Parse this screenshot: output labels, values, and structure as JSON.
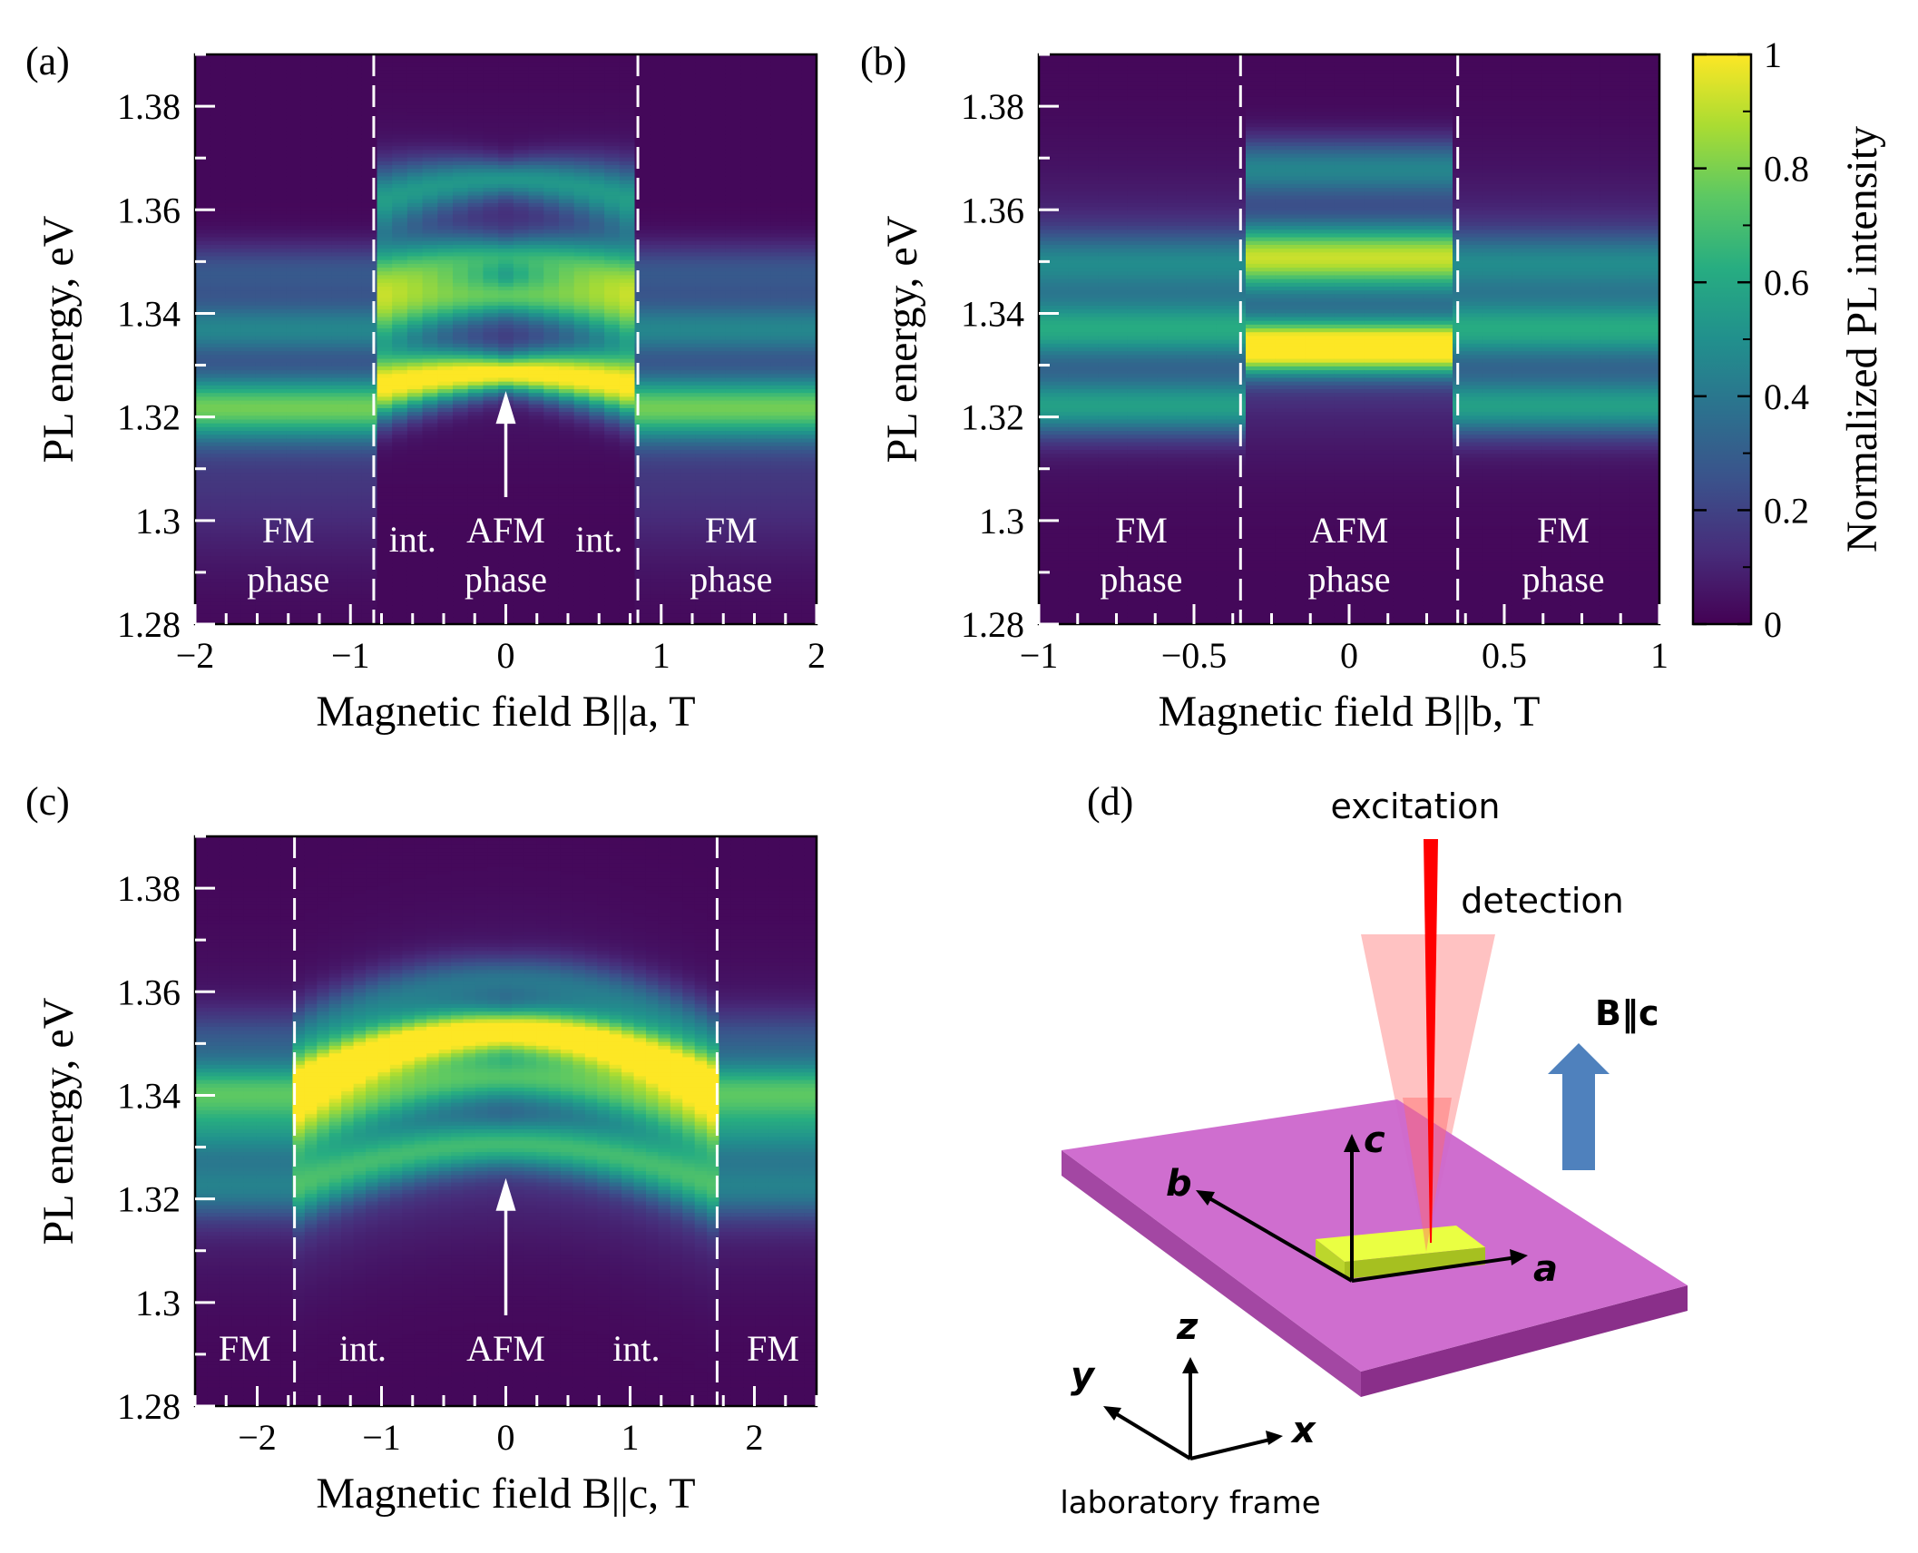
{
  "chart_data": [
    {
      "panel": "(a)",
      "type": "heatmap",
      "xlabel": "Magnetic field B||a, T",
      "ylabel": "PL energy, eV",
      "xlim": [
        -2,
        2
      ],
      "ylim": [
        1.28,
        1.39
      ],
      "x_ticks": [
        -2,
        -1,
        0,
        1,
        2
      ],
      "x_tick_labels": [
        "−2",
        "−1",
        "0",
        "1",
        "2"
      ],
      "y_ticks": [
        1.28,
        1.3,
        1.32,
        1.34,
        1.36,
        1.38
      ],
      "y_tick_labels": [
        "1.28",
        "1.3",
        "1.32",
        "1.34",
        "1.36",
        "1.38"
      ],
      "phase_boundaries": [
        -0.85,
        0.85
      ],
      "phase_labels": [
        {
          "text": "FM\nphase",
          "x": -1.4
        },
        {
          "text": "int.",
          "x": -0.6
        },
        {
          "text": "AFM\nphase",
          "x": 0
        },
        {
          "text": "int.",
          "x": 0.6
        },
        {
          "text": "FM\nphase",
          "x": 1.45
        }
      ],
      "arrow_points_to": {
        "x": 0,
        "y": 1.325
      },
      "lines": [
        {
          "e0": 1.3285,
          "curv": 0.004,
          "w": 0.0025,
          "amp": 0.95,
          "sat_e": 1.322
        },
        {
          "e0": 1.3435,
          "curv": 0.005,
          "w": 0.0028,
          "amp": 0.55,
          "sat_e": 1.337
        },
        {
          "e0": 1.351,
          "curv": 0.005,
          "w": 0.0025,
          "amp": 0.45,
          "sat_e": 1.343
        },
        {
          "e0": 1.366,
          "curv": 0.006,
          "w": 0.0025,
          "amp": 0.45,
          "sat_e": 1.35
        }
      ]
    },
    {
      "panel": "(b)",
      "type": "heatmap",
      "xlabel": "Magnetic field B||b, T",
      "ylabel": "PL energy, eV",
      "xlim": [
        -1,
        1
      ],
      "ylim": [
        1.28,
        1.39
      ],
      "x_ticks": [
        -1,
        -0.5,
        0,
        0.5,
        1
      ],
      "x_tick_labels": [
        "−1",
        "−0.5",
        "0",
        "0.5",
        "1"
      ],
      "y_ticks": [
        1.28,
        1.3,
        1.32,
        1.34,
        1.36,
        1.38
      ],
      "y_tick_labels": [
        "1.28",
        "1.3",
        "1.32",
        "1.34",
        "1.36",
        "1.38"
      ],
      "phase_boundaries": [
        -0.35,
        0.35
      ],
      "phase_labels": [
        {
          "text": "FM\nphase",
          "x": -0.67
        },
        {
          "text": "AFM\nphase",
          "x": 0
        },
        {
          "text": "FM\nphase",
          "x": 0.69
        }
      ],
      "afm_lines": [
        {
          "e": 1.3335,
          "w": 0.0035,
          "amp": 1.0
        },
        {
          "e": 1.351,
          "w": 0.0045,
          "amp": 0.75
        },
        {
          "e": 1.368,
          "w": 0.004,
          "amp": 0.4
        }
      ],
      "fm_lines": [
        {
          "e": 1.322,
          "w": 0.004,
          "amp": 0.45
        },
        {
          "e": 1.337,
          "w": 0.004,
          "amp": 0.4
        },
        {
          "e": 1.35,
          "w": 0.004,
          "amp": 0.3
        }
      ]
    },
    {
      "panel": "(c)",
      "type": "heatmap",
      "xlabel": "Magnetic field B||c, T",
      "ylabel": "PL energy, eV",
      "xlim": [
        -2.5,
        2.5
      ],
      "ylim": [
        1.28,
        1.39
      ],
      "x_ticks": [
        -2,
        -1,
        0,
        1,
        2
      ],
      "x_tick_labels": [
        "−2",
        "−1",
        "0",
        "1",
        "2"
      ],
      "y_ticks": [
        1.28,
        1.3,
        1.32,
        1.34,
        1.36,
        1.38
      ],
      "y_tick_labels": [
        "1.28",
        "1.3",
        "1.32",
        "1.34",
        "1.36",
        "1.38"
      ],
      "phase_boundaries": [
        -1.7,
        1.7
      ],
      "phase_labels": [
        {
          "text": "FM",
          "x": -2.1
        },
        {
          "text": "int.",
          "x": -1.15
        },
        {
          "text": "AFM",
          "x": 0
        },
        {
          "text": "int.",
          "x": 1.05
        },
        {
          "text": "FM",
          "x": 2.15
        }
      ],
      "arrow_points_to": {
        "x": 0,
        "y": 1.324
      },
      "lines": [
        {
          "e0": 1.3525,
          "curv": 0.0038,
          "w": 0.003,
          "amp": 0.95,
          "sat_e": 1.341
        },
        {
          "e0": 1.3435,
          "curv": 0.0035,
          "w": 0.0032,
          "amp": 0.5,
          "sat_e": 1.333
        },
        {
          "e0": 1.3305,
          "curv": 0.003,
          "w": 0.0032,
          "amp": 0.5,
          "sat_e": 1.322
        },
        {
          "e0": 1.3625,
          "curv": 0.004,
          "w": 0.003,
          "amp": 0.3,
          "sat_e": 1.351
        }
      ]
    }
  ],
  "colorbar": {
    "label": "Normalized PL intensity",
    "ticks": [
      0,
      0.2,
      0.4,
      0.6,
      0.8,
      1
    ],
    "tick_labels": [
      "0",
      "0.2",
      "0.4",
      "0.6",
      "0.8",
      "1"
    ]
  },
  "panel_d": {
    "label": "(d)",
    "excitation": "excitation",
    "detection": "detection",
    "field_label": "B‖c",
    "crystal_axes": [
      "a",
      "b",
      "c"
    ],
    "lab_axes": [
      "x",
      "y",
      "z"
    ],
    "lab_frame_label": "laboratory frame",
    "colors": {
      "plate_top": "#cc66cc",
      "plate_side": "#9b3a9b",
      "sample": "#d4f03c",
      "laser": "#ff0000",
      "cone": "#ffb3b3",
      "field_arrow": "#4f81bd"
    }
  }
}
